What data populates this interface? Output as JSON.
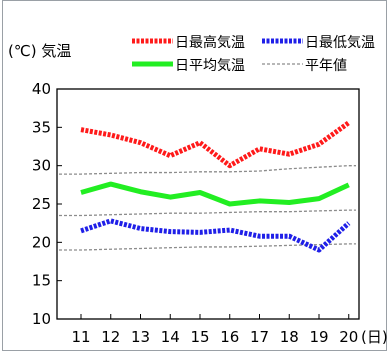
{
  "chart_data": {
    "type": "line",
    "ylabel": "(℃) 気温",
    "x_unit": "(日)",
    "x": [
      11,
      12,
      13,
      14,
      15,
      16,
      17,
      18,
      19,
      20
    ],
    "ylim": [
      10,
      40
    ],
    "yticks": [
      10,
      15,
      20,
      25,
      30,
      35,
      40
    ],
    "grid": false,
    "legend_position": "top",
    "series": [
      {
        "name": "日最高気温",
        "style": "dotted-thick",
        "color": "#ff1a1a",
        "values": [
          34.7,
          34.0,
          33.0,
          31.3,
          33.0,
          30.0,
          32.2,
          31.5,
          32.8,
          35.6
        ]
      },
      {
        "name": "日最低気温",
        "style": "dotted-thick",
        "color": "#1f1fe8",
        "values": [
          21.5,
          22.8,
          21.8,
          21.4,
          21.3,
          21.6,
          20.8,
          20.8,
          19.0,
          22.5
        ]
      },
      {
        "name": "日平均気温",
        "style": "solid-thick",
        "color": "#22ee22",
        "values": [
          26.5,
          27.6,
          26.6,
          25.9,
          26.5,
          25.0,
          25.4,
          25.2,
          25.7,
          27.5
        ]
      }
    ],
    "normals": {
      "name": "平年値",
      "style": "dashed-thin",
      "color": "#8c8c8c",
      "high": [
        28.9,
        29.0,
        29.1,
        29.1,
        29.2,
        29.2,
        29.3,
        29.6,
        29.8,
        30.0
      ],
      "mean": [
        23.5,
        23.6,
        23.7,
        23.8,
        23.8,
        23.9,
        24.0,
        24.0,
        24.1,
        24.2
      ],
      "low": [
        19.0,
        19.1,
        19.2,
        19.3,
        19.4,
        19.4,
        19.5,
        19.6,
        19.7,
        19.8
      ]
    }
  }
}
